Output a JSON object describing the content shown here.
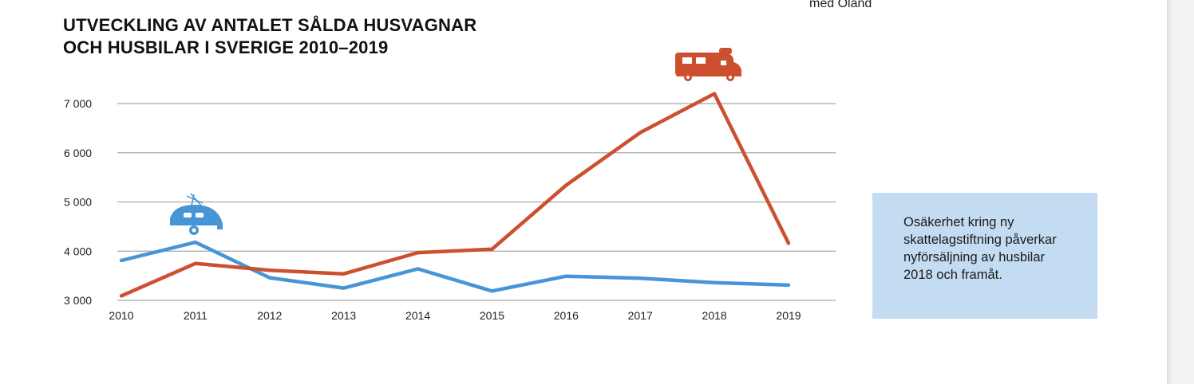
{
  "page_fragment": "med Öland",
  "chart_data": {
    "type": "line",
    "title": [
      "UTVECKLING AV ANTALET SÅLDA HUSVAGNAR",
      "OCH HUSBILAR I SVERIGE 2010–2019"
    ],
    "x": [
      "2010",
      "2011",
      "2012",
      "2013",
      "2014",
      "2015",
      "2016",
      "2017",
      "2018",
      "2019"
    ],
    "y_ticks": [
      "3 000",
      "4 000",
      "5 000",
      "6 000",
      "7 000"
    ],
    "y_tick_values": [
      3000,
      4000,
      5000,
      6000,
      7000
    ],
    "ylim": [
      3000,
      7000
    ],
    "grid": true,
    "series": [
      {
        "color": "#4795d6",
        "icon": "caravan-icon",
        "values": [
          3810,
          4180,
          3460,
          3250,
          3640,
          3190,
          3490,
          3450,
          3360,
          3310
        ]
      },
      {
        "color": "#cc5030",
        "icon": "motorhome-icon",
        "values": [
          3090,
          3750,
          3610,
          3540,
          3970,
          4040,
          5340,
          6410,
          7200,
          4160
        ]
      }
    ]
  },
  "note": {
    "text": "Osäkerhet kring ny skattelagstiftning påverkar nyförsäljning av husbilar 2018 och framåt."
  }
}
